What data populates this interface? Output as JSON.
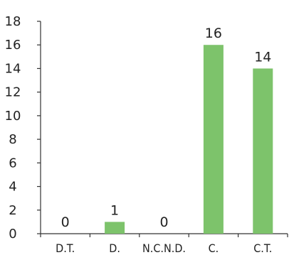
{
  "chart_data": {
    "type": "bar",
    "categories": [
      "D.T.",
      "D.",
      "N.C.N.D.",
      "C.",
      "C.T."
    ],
    "values": [
      0,
      1,
      0,
      16,
      14
    ],
    "data_labels": [
      "0",
      "1",
      "0",
      "16",
      "14"
    ],
    "yticks": [
      0,
      2,
      4,
      6,
      8,
      10,
      12,
      14,
      16,
      18
    ],
    "ylim": [
      0,
      18
    ],
    "grid": false,
    "legend": "none",
    "bar_color": "#7dc36b"
  }
}
